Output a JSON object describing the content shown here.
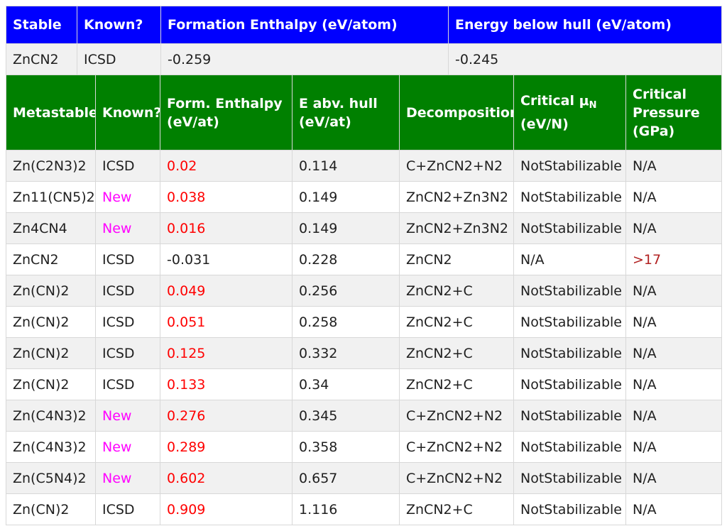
{
  "stable": {
    "headers": [
      "Stable",
      "Known?",
      "Formation Enthalpy (eV/atom)",
      "Energy below hull (eV/atom)"
    ],
    "row": [
      "ZnCN2",
      "ICSD",
      "-0.259",
      "-0.245"
    ]
  },
  "metastable": {
    "headers": {
      "metastable": "Metastable",
      "known": "Known?",
      "form_enthalpy": "Form. Enthalpy (eV/at)",
      "e_abv_hull": "E abv. hull (eV/at)",
      "decomposition": "Decomposition",
      "critical_mu_main": "Critical μ",
      "critical_mu_sub": "N",
      "critical_mu_unit": "(eV/N)",
      "critical_pressure": "Critical Pressure (GPa)"
    },
    "rows": [
      {
        "formula": "Zn(C2N3)2",
        "known": "ICSD",
        "enthalpy": "0.02",
        "hull": "0.114",
        "decomposition": "C+ZnCN2+N2",
        "mu": "NotStabilizable",
        "pressure": "N/A"
      },
      {
        "formula": "Zn11(CN5)2",
        "known": "New",
        "enthalpy": "0.038",
        "hull": "0.149",
        "decomposition": "ZnCN2+Zn3N2",
        "mu": "NotStabilizable",
        "pressure": "N/A"
      },
      {
        "formula": "Zn4CN4",
        "known": "New",
        "enthalpy": "0.016",
        "hull": "0.149",
        "decomposition": "ZnCN2+Zn3N2",
        "mu": "NotStabilizable",
        "pressure": "N/A"
      },
      {
        "formula": "ZnCN2",
        "known": "ICSD",
        "enthalpy": "-0.031",
        "hull": "0.228",
        "decomposition": "ZnCN2",
        "mu": "N/A",
        "pressure": ">17"
      },
      {
        "formula": "Zn(CN)2",
        "known": "ICSD",
        "enthalpy": "0.049",
        "hull": "0.256",
        "decomposition": "ZnCN2+C",
        "mu": "NotStabilizable",
        "pressure": "N/A"
      },
      {
        "formula": "Zn(CN)2",
        "known": "ICSD",
        "enthalpy": "0.051",
        "hull": "0.258",
        "decomposition": "ZnCN2+C",
        "mu": "NotStabilizable",
        "pressure": "N/A"
      },
      {
        "formula": "Zn(CN)2",
        "known": "ICSD",
        "enthalpy": "0.125",
        "hull": "0.332",
        "decomposition": "ZnCN2+C",
        "mu": "NotStabilizable",
        "pressure": "N/A"
      },
      {
        "formula": "Zn(CN)2",
        "known": "ICSD",
        "enthalpy": "0.133",
        "hull": "0.34",
        "decomposition": "ZnCN2+C",
        "mu": "NotStabilizable",
        "pressure": "N/A"
      },
      {
        "formula": "Zn(C4N3)2",
        "known": "New",
        "enthalpy": "0.276",
        "hull": "0.345",
        "decomposition": "C+ZnCN2+N2",
        "mu": "NotStabilizable",
        "pressure": "N/A"
      },
      {
        "formula": "Zn(C4N3)2",
        "known": "New",
        "enthalpy": "0.289",
        "hull": "0.358",
        "decomposition": "C+ZnCN2+N2",
        "mu": "NotStabilizable",
        "pressure": "N/A"
      },
      {
        "formula": "Zn(C5N4)2",
        "known": "New",
        "enthalpy": "0.602",
        "hull": "0.657",
        "decomposition": "C+ZnCN2+N2",
        "mu": "NotStabilizable",
        "pressure": "N/A"
      },
      {
        "formula": "Zn(CN)2",
        "known": "ICSD",
        "enthalpy": "0.909",
        "hull": "1.116",
        "decomposition": "ZnCN2+C",
        "mu": "NotStabilizable",
        "pressure": "N/A"
      }
    ]
  },
  "colors": {
    "stable_header_bg": "#0000ff",
    "metastable_header_bg": "#008000",
    "positive_enthalpy": "#ff0000",
    "new_label": "#ff00ff",
    "critical_pressure_value": "#b22222",
    "row_alt_bg": "#f1f1f1"
  }
}
